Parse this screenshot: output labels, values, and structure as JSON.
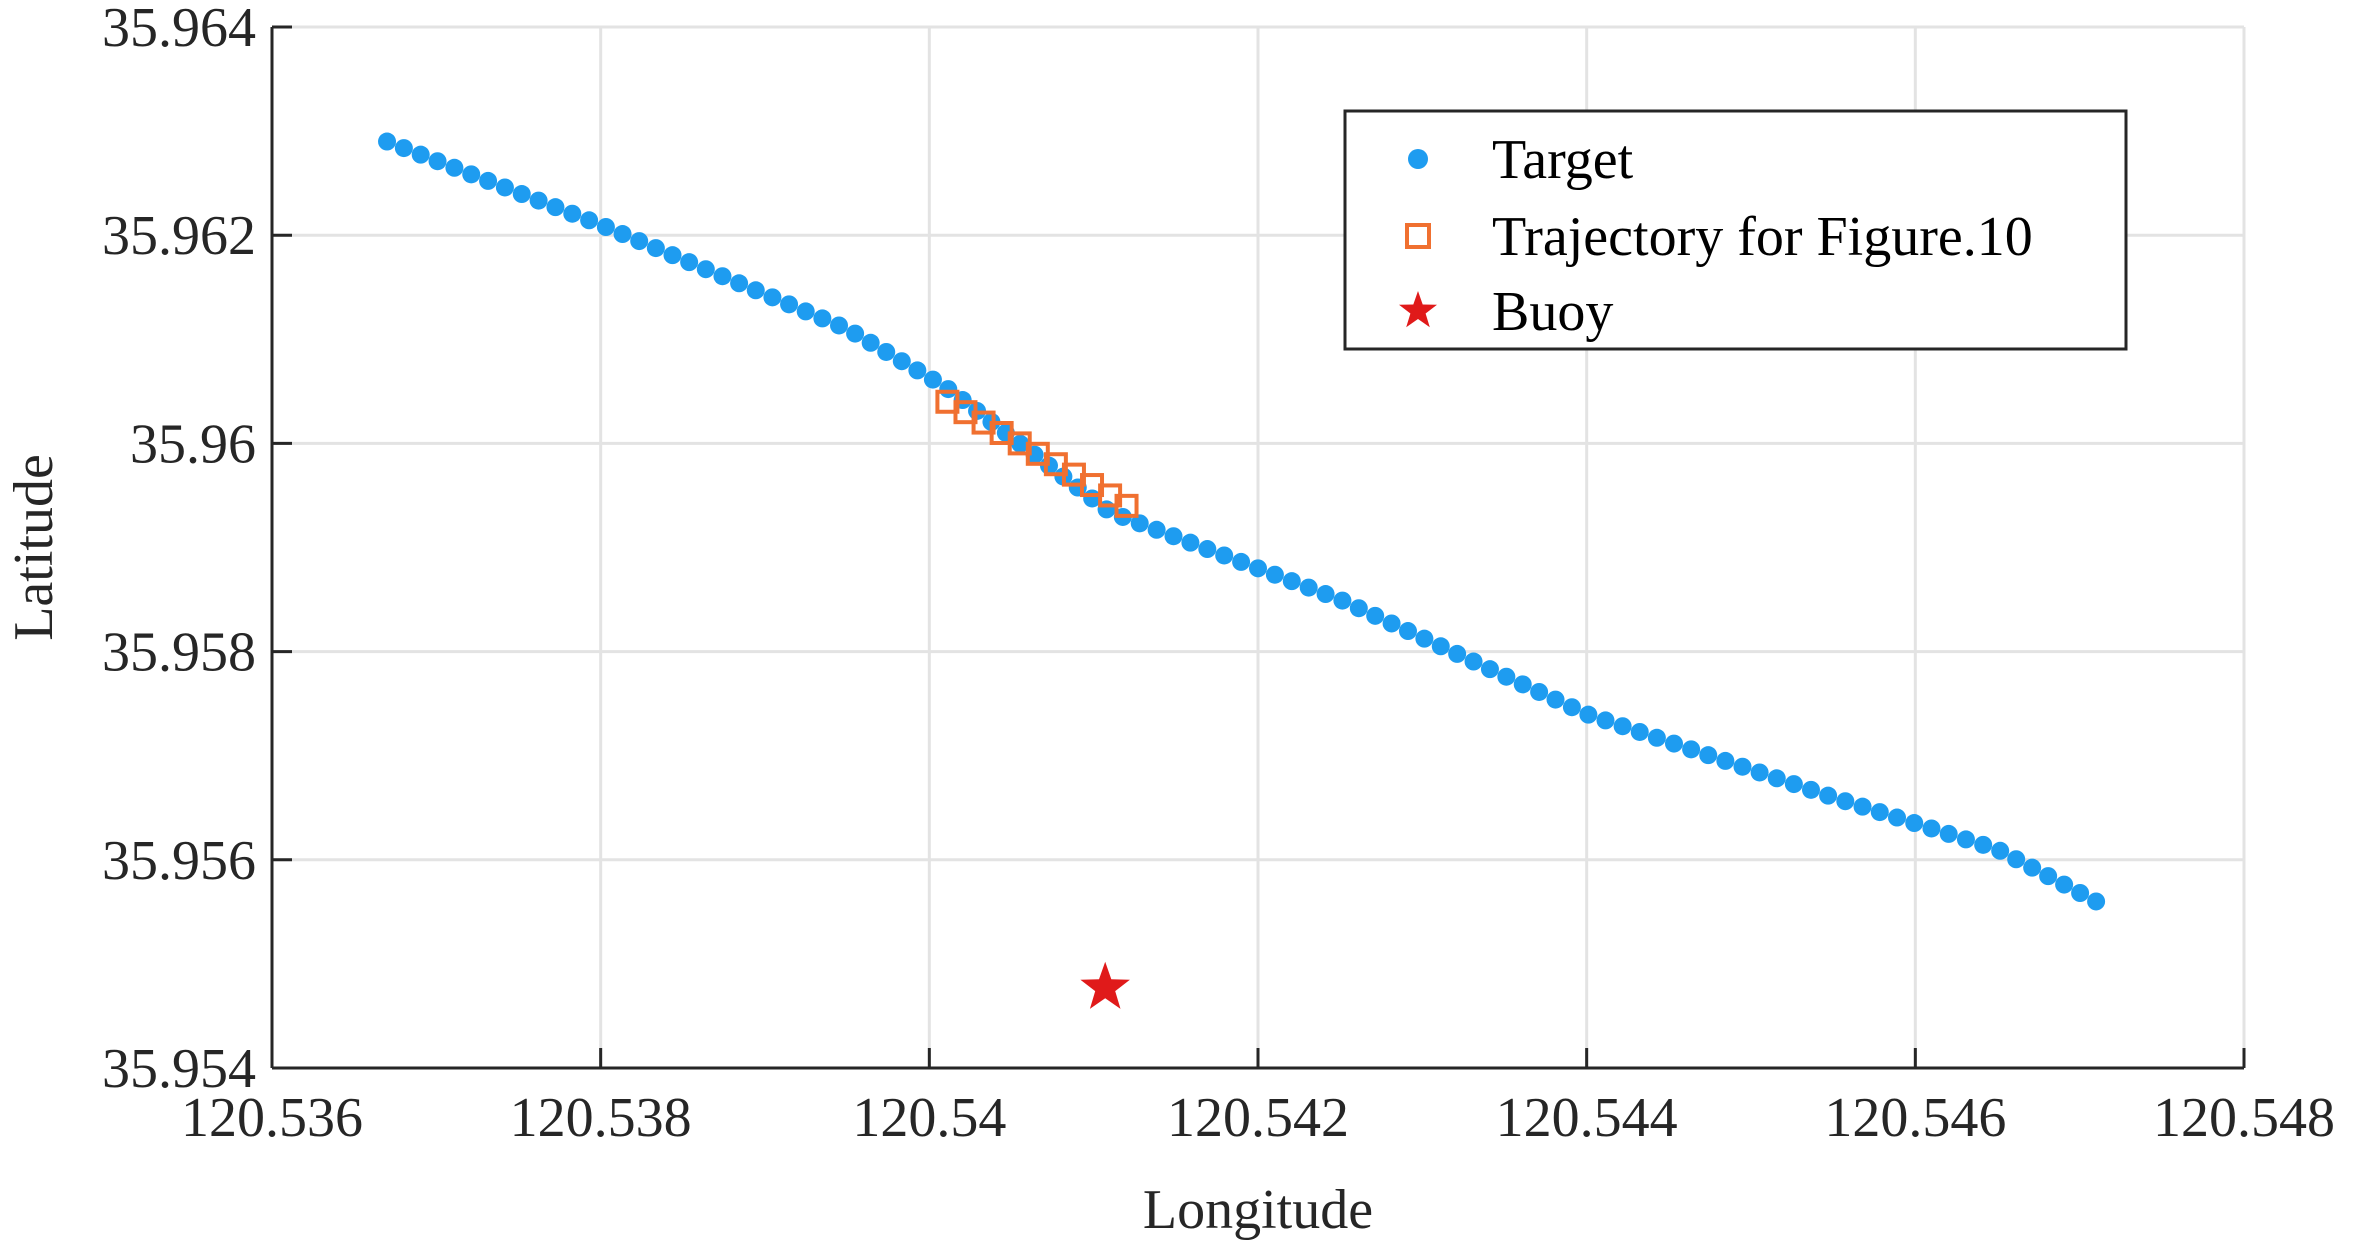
{
  "chart_data": {
    "type": "scatter",
    "title": "",
    "xlabel": "Longitude",
    "ylabel": "Latitude",
    "xlim": [
      120.536,
      120.548
    ],
    "ylim": [
      35.954,
      35.964
    ],
    "xticks": [
      120.536,
      120.538,
      120.54,
      120.542,
      120.544,
      120.546,
      120.548
    ],
    "xtick_labels": [
      "120.536",
      "120.538",
      "120.54",
      "120.542",
      "120.544",
      "120.546",
      "120.548"
    ],
    "yticks": [
      35.954,
      35.956,
      35.958,
      35.96,
      35.962,
      35.964
    ],
    "ytick_labels": [
      "35.954",
      "35.956",
      "35.958",
      "35.96",
      "35.962",
      "35.964"
    ],
    "grid": true,
    "legend_position": "top-right",
    "series": [
      {
        "name": "Target",
        "marker": "circle",
        "color": "#1e9cf0",
        "path_knots": [
          [
            120.5367,
            35.9629
          ],
          [
            120.538,
            35.9621
          ],
          [
            120.5395,
            35.9611
          ],
          [
            120.5401,
            35.96054
          ],
          [
            120.5411,
            35.95934
          ],
          [
            120.5425,
            35.9585
          ],
          [
            120.544,
            35.9574
          ],
          [
            120.5455,
            35.9566
          ],
          [
            120.5465,
            35.9561
          ],
          [
            120.5471,
            35.9556
          ]
        ],
        "point_count": 105
      },
      {
        "name": "Trajectory for Figure.10",
        "marker": "square",
        "color": "#f07030",
        "points": [
          [
            120.54011,
            35.9604
          ],
          [
            120.54022,
            35.9603
          ],
          [
            120.54033,
            35.9602
          ],
          [
            120.54044,
            35.9601
          ],
          [
            120.54055,
            35.96
          ],
          [
            120.54066,
            35.9599
          ],
          [
            120.54077,
            35.9598
          ],
          [
            120.54088,
            35.9597
          ],
          [
            120.54099,
            35.9596
          ],
          [
            120.5411,
            35.9595
          ],
          [
            120.5412,
            35.9594
          ]
        ]
      },
      {
        "name": "Buoy",
        "marker": "star",
        "color": "#e01a1a",
        "points": [
          [
            120.54107,
            35.95477
          ]
        ]
      }
    ]
  }
}
